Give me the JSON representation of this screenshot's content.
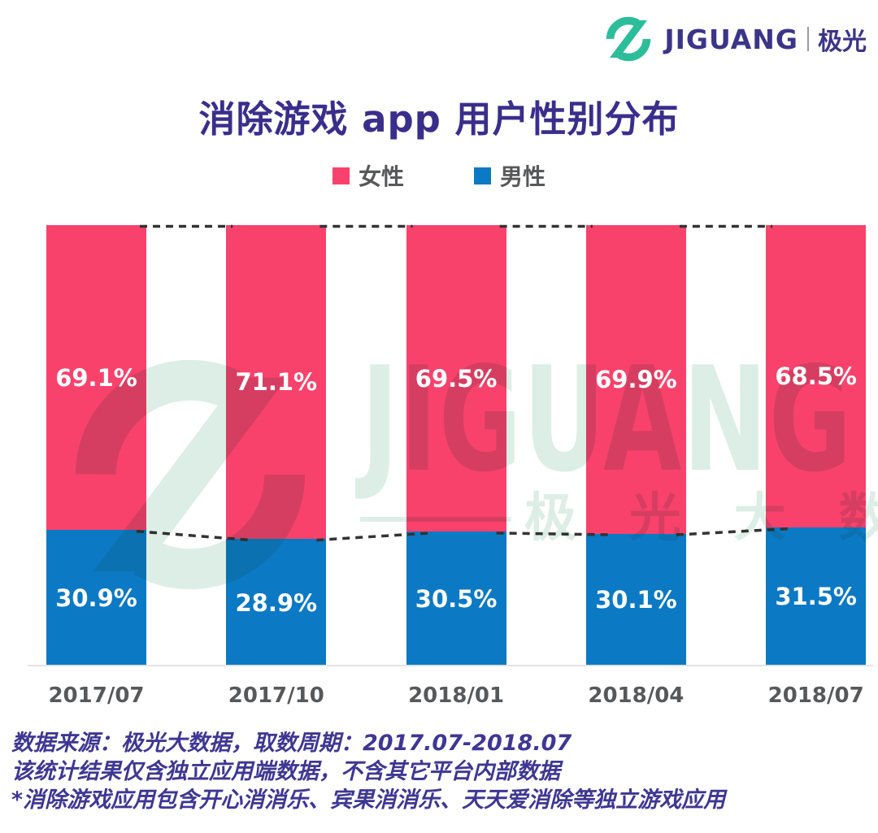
{
  "brand": {
    "name": "JIGUANG",
    "name_cn": "极光",
    "logo_color": "#2CBD9A",
    "text_color": "#3B3589"
  },
  "title": "消除游戏 app 用户性别分布",
  "chart_data": {
    "type": "bar",
    "stacked": true,
    "unit": "%",
    "categories": [
      "2017/07",
      "2017/10",
      "2018/01",
      "2018/04",
      "2018/07"
    ],
    "series": [
      {
        "name": "女性",
        "color": "#F8426C",
        "values": [
          69.1,
          71.1,
          69.5,
          69.9,
          68.5
        ]
      },
      {
        "name": "男性",
        "color": "#0C79C4",
        "values": [
          30.9,
          28.9,
          30.5,
          30.1,
          31.5
        ]
      }
    ],
    "ylim": [
      0,
      100
    ],
    "grid": false,
    "legend_position": "top",
    "connector_lines": "dashed"
  },
  "watermark": {
    "text": "JIGUANG",
    "subtext": "极光大数据"
  },
  "footer": {
    "lines": [
      "数据来源：极光大数据，取数周期：2017.07-2018.07",
      "该统计结果仅含独立应用端数据，不含其它平台内部数据",
      "*消除游戏应用包含开心消消乐、宾果消消乐、天天爱消除等独立游戏应用"
    ]
  }
}
